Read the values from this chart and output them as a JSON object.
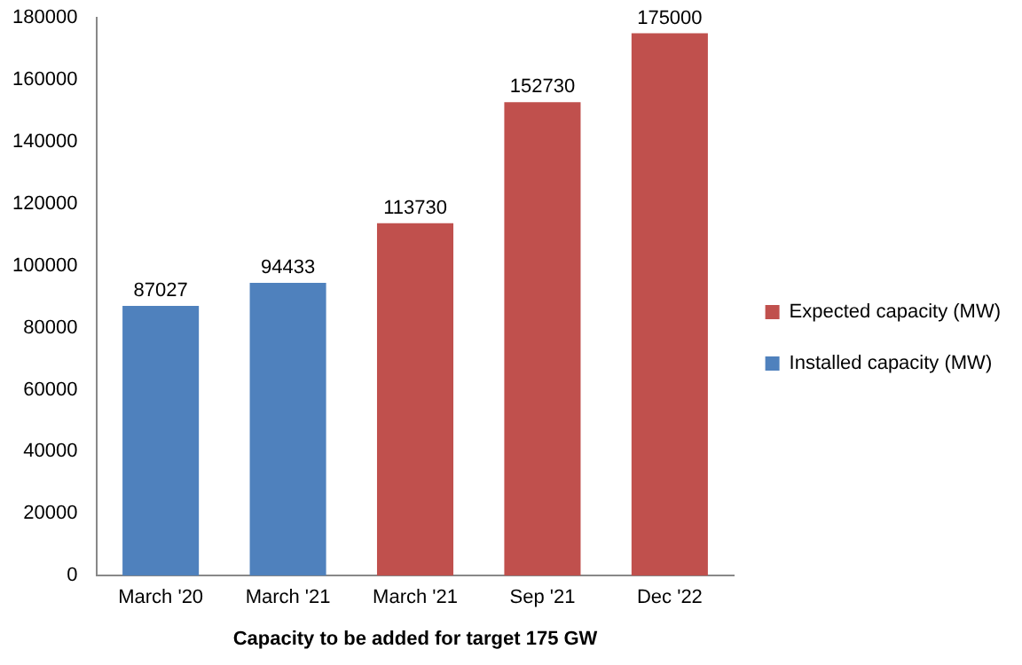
{
  "chart_data": {
    "type": "bar",
    "xlabel": "Capacity to be added for target 175 GW",
    "categories": [
      "March '20",
      "March '21",
      "March '21",
      "Sep '21",
      "Dec '22"
    ],
    "series": [
      {
        "name": "Installed capacity (MW)",
        "color": "#4f81bd",
        "values": [
          87027,
          94433,
          null,
          null,
          null
        ]
      },
      {
        "name": "Expected capacity (MW)",
        "color": "#c0504d",
        "values": [
          null,
          null,
          113730,
          152730,
          175000
        ]
      }
    ],
    "stacked": true,
    "ylim": [
      0,
      180000
    ],
    "yticks": [
      0,
      20000,
      40000,
      60000,
      80000,
      100000,
      120000,
      140000,
      160000,
      180000
    ],
    "grid": false,
    "legend": "right",
    "data_labels": true
  }
}
